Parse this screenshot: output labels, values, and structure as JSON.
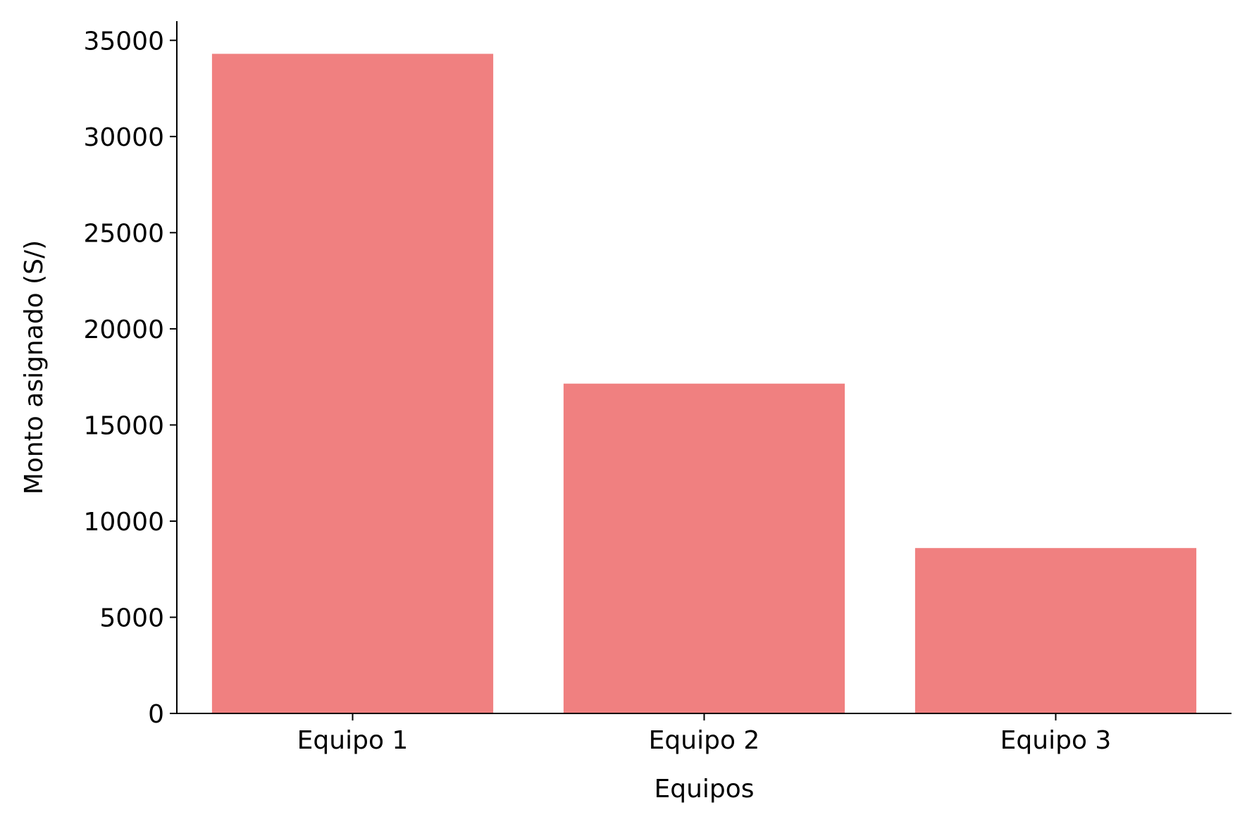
{
  "chart_data": {
    "type": "bar",
    "title": "",
    "categories": [
      "Equipo 1",
      "Equipo 2",
      "Equipo 3"
    ],
    "values": [
      34300,
      17150,
      8600
    ],
    "xlabel": "Equipos",
    "ylabel": "Monto asignado (S/)",
    "ylim": [
      0,
      36000
    ],
    "yticks": [
      "0",
      "5000",
      "10000",
      "15000",
      "20000",
      "25000",
      "30000",
      "35000"
    ],
    "grid": false,
    "legend": "none",
    "bar_color": "#f08080",
    "spines": [
      "left",
      "bottom"
    ]
  }
}
